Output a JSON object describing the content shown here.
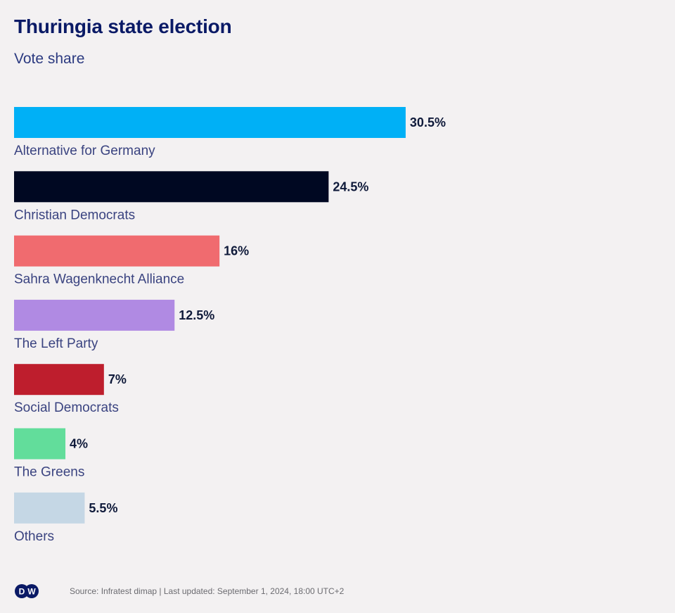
{
  "header": {
    "title": "Thuringia state election",
    "subtitle": "Vote share"
  },
  "footer": {
    "logo": "DW",
    "source": "Source: Infratest dimap | Last updated: September 1, 2024, 18:00 UTC+2"
  },
  "chart_data": {
    "type": "bar",
    "orientation": "horizontal",
    "title": "Thuringia state election",
    "subtitle": "Vote share",
    "xlabel": "",
    "ylabel": "",
    "unit": "%",
    "grid": false,
    "legend": "none",
    "categories": [
      "Alternative for Germany",
      "Christian Democrats",
      "Sahra Wagenknecht Alliance",
      "The Left Party",
      "Social Democrats",
      "The Greens",
      "Others"
    ],
    "values": [
      30.5,
      24.5,
      16,
      12.5,
      7,
      4,
      5.5
    ],
    "value_labels": [
      "30.5%",
      "24.5%",
      "16%",
      "12.5%",
      "7%",
      "4%",
      "5.5%"
    ],
    "colors": [
      "#00b0f6",
      "#000822",
      "#f06b6f",
      "#b08ae3",
      "#be1e2d",
      "#62dd9b",
      "#c5d7e5"
    ]
  }
}
